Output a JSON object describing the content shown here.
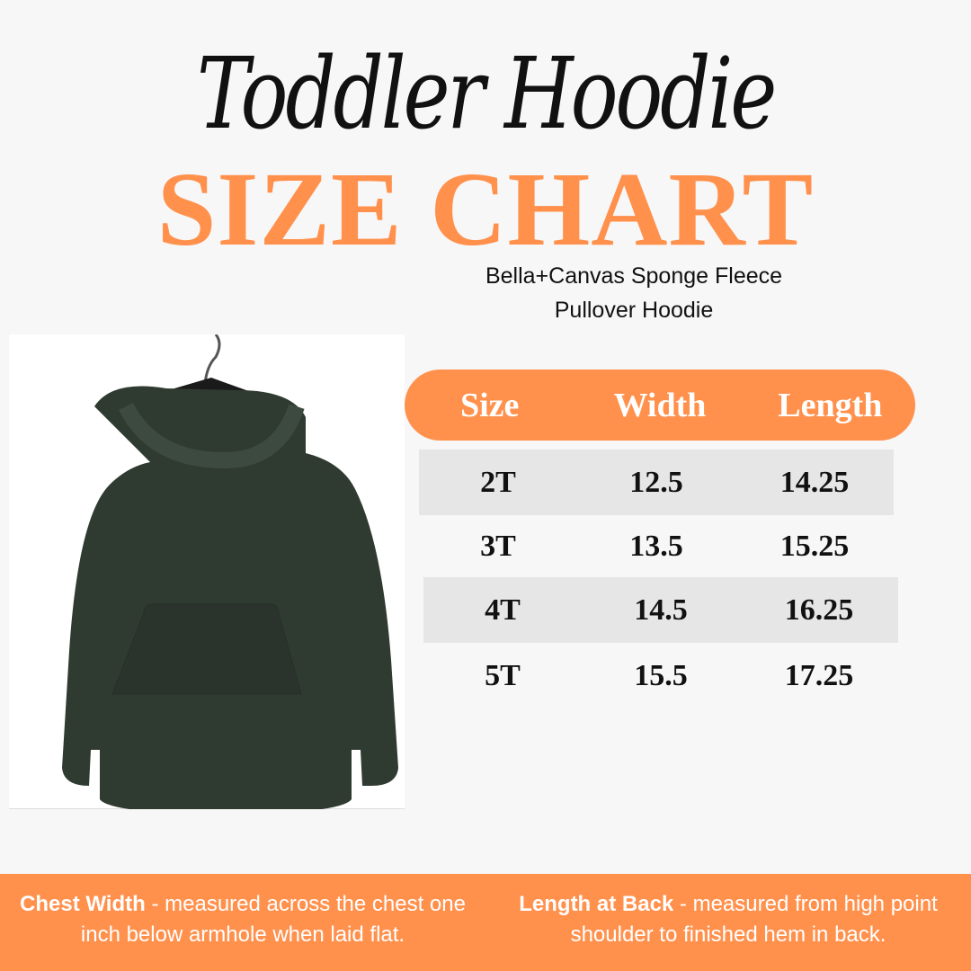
{
  "header": {
    "script_title": "Toddler Hoodie",
    "title": "SIZE CHART",
    "subtitle_line1": "Bella+Canvas Sponge Fleece",
    "subtitle_line2": "Pullover Hoodie"
  },
  "product_image": {
    "icon": "hoodie-on-hanger",
    "color": "#2f3a31"
  },
  "table": {
    "headers": [
      "Size",
      "Width",
      "Length"
    ],
    "rows": [
      [
        "2T",
        "12.5",
        "14.25"
      ],
      [
        "3T",
        "13.5",
        "15.25"
      ],
      [
        "4T",
        "14.5",
        "16.25"
      ],
      [
        "5T",
        "15.5",
        "17.25"
      ]
    ]
  },
  "footer": {
    "chest_label": "Chest Width",
    "chest_text": " - measured across the chest one inch below armhole when laid flat.",
    "length_label": "Length at Back",
    "length_text": " - measured from high point shoulder to finished hem in back."
  },
  "colors": {
    "accent": "#ff914d",
    "row_shade": "#e6e6e6",
    "background": "#f7f7f7"
  }
}
